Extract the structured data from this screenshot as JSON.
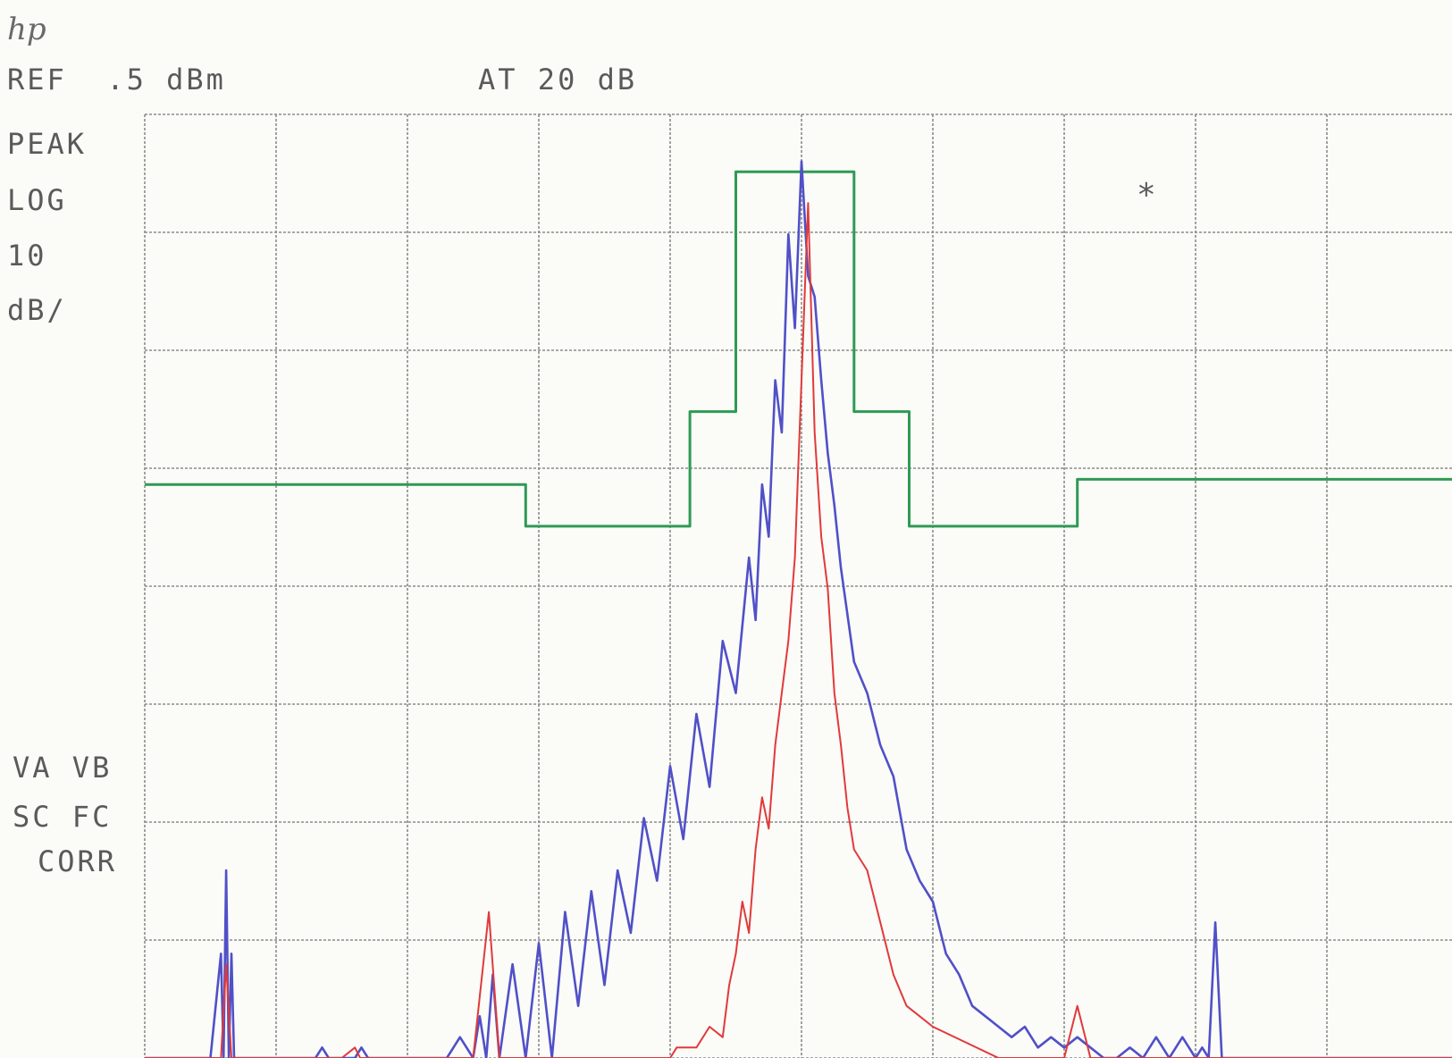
{
  "logo_text": "hp",
  "header": {
    "ref": "REF  .5 dBm",
    "atten": "AT 20 dB"
  },
  "left_labels": {
    "mode": "PEAK",
    "scale": "LOG",
    "div_value": "10",
    "div_unit": "dB/",
    "va_vb": "VA VB",
    "sc_fc": "SC FC",
    "corr": "CORR"
  },
  "marker_symbol": "*",
  "colors": {
    "limit_trace": "#2e9a55",
    "trace_a": "#5050c8",
    "trace_b": "#e03a3a",
    "grid": "#8c8c8c"
  },
  "chart_data": {
    "type": "line",
    "title": "",
    "xlabel": "",
    "ylabel": "",
    "xlim": [
      0,
      10
    ],
    "ylim": [
      -90,
      0.5
    ],
    "grid": true,
    "series": [
      {
        "key": "limit",
        "x": [
          0,
          2.9,
          2.9,
          4.15,
          4.15,
          4.5,
          4.5,
          5.4,
          5.4,
          5.82,
          5.82,
          7.1,
          7.1,
          10
        ],
        "y": [
          -35,
          -35,
          -39,
          -39,
          -28,
          -28,
          -5,
          -5,
          -28,
          -28,
          -39,
          -39,
          -34.5,
          -34.5
        ]
      },
      {
        "key": "peak_hold",
        "x": [
          0,
          0.5,
          0.58,
          0.6,
          0.62,
          0.64,
          0.66,
          0.68,
          0.72,
          0.8,
          1.3,
          1.35,
          1.4,
          1.6,
          1.65,
          1.7,
          2.0,
          2.3,
          2.4,
          2.5,
          2.55,
          2.6,
          2.65,
          2.7,
          2.8,
          2.9,
          3.0,
          3.1,
          3.2,
          3.3,
          3.4,
          3.5,
          3.6,
          3.7,
          3.8,
          3.9,
          4.0,
          4.1,
          4.2,
          4.3,
          4.4,
          4.5,
          4.6,
          4.65,
          4.7,
          4.75,
          4.8,
          4.85,
          4.9,
          4.95,
          5.0,
          5.05,
          5.1,
          5.15,
          5.2,
          5.25,
          5.3,
          5.4,
          5.5,
          5.6,
          5.7,
          5.8,
          5.9,
          6.0,
          6.1,
          6.2,
          6.3,
          6.4,
          6.5,
          6.6,
          6.7,
          6.8,
          6.9,
          7.0,
          7.1,
          7.2,
          7.3,
          7.4,
          7.5,
          7.6,
          7.7,
          7.8,
          7.9,
          8.0,
          8.05,
          8.1,
          8.15,
          8.2,
          8.3,
          10
        ],
        "y": [
          -90,
          -90,
          -80,
          -90,
          -72,
          -90,
          -80,
          -90,
          -90,
          -90,
          -90,
          -89,
          -90,
          -90,
          -89,
          -90,
          -90,
          -90,
          -88,
          -90,
          -86,
          -90,
          -82,
          -90,
          -81,
          -90,
          -79,
          -90,
          -76,
          -85,
          -74,
          -83,
          -72,
          -78,
          -67,
          -73,
          -62,
          -69,
          -57,
          -64,
          -50,
          -55,
          -42,
          -48,
          -35,
          -40,
          -25,
          -30,
          -11,
          -20,
          -4,
          -15,
          -17,
          -25,
          -32,
          -37,
          -43,
          -52,
          -55,
          -60,
          -63,
          -70,
          -73,
          -75,
          -80,
          -82,
          -85,
          -86,
          -87,
          -88,
          -87,
          -89,
          -88,
          -89,
          -88,
          -89,
          -90,
          -90,
          -89,
          -90,
          -88,
          -90,
          -88,
          -90,
          -89,
          -90,
          -77,
          -90,
          -90,
          -90
        ]
      },
      {
        "key": "current",
        "x": [
          0,
          0.58,
          0.62,
          0.66,
          0.7,
          1.0,
          1.5,
          1.6,
          1.64,
          2.0,
          2.5,
          2.62,
          2.7,
          2.8,
          3.0,
          3.5,
          4.0,
          4.05,
          4.2,
          4.3,
          4.4,
          4.45,
          4.5,
          4.55,
          4.6,
          4.65,
          4.7,
          4.75,
          4.8,
          4.85,
          4.9,
          4.95,
          5.0,
          5.05,
          5.1,
          5.15,
          5.2,
          5.25,
          5.3,
          5.35,
          5.4,
          5.5,
          5.6,
          5.7,
          5.8,
          5.9,
          6.0,
          6.5,
          7.0,
          7.1,
          7.2,
          8.0,
          10
        ],
        "y": [
          -90,
          -90,
          -81,
          -90,
          -90,
          -90,
          -90,
          -89,
          -90,
          -90,
          -90,
          -76,
          -90,
          -90,
          -90,
          -90,
          -90,
          -89,
          -89,
          -87,
          -88,
          -83,
          -80,
          -75,
          -78,
          -70,
          -65,
          -68,
          -60,
          -55,
          -50,
          -42,
          -25,
          -8,
          -30,
          -40,
          -45,
          -55,
          -60,
          -66,
          -70,
          -72,
          -77,
          -82,
          -85,
          -86,
          -87,
          -90,
          -90,
          -85,
          -90,
          -90,
          -90
        ]
      }
    ]
  }
}
